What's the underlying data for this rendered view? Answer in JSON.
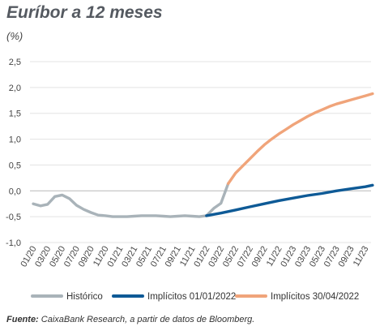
{
  "chart_data": {
    "type": "line",
    "title": "Euríbor a 12 meses",
    "unit_label": "(%)",
    "ylim": [
      -1.0,
      2.5
    ],
    "y_ticks": [
      "2,5",
      "2,0",
      "1,5",
      "1,0",
      "0,5",
      "0,0",
      "-0,5",
      "-1,0"
    ],
    "y_tick_values": [
      2.5,
      2.0,
      1.5,
      1.0,
      0.5,
      0.0,
      -0.5,
      -1.0
    ],
    "x_ticks": [
      "01/20",
      "03/20",
      "05/20",
      "07/20",
      "09/20",
      "11/20",
      "01/21",
      "03/21",
      "05/21",
      "07/21",
      "09/21",
      "11/21",
      "01/22",
      "03/22",
      "05/22",
      "07/22",
      "09/22",
      "11/22",
      "01/23",
      "03/23",
      "05/23",
      "07/23",
      "09/23",
      "11/23"
    ],
    "grid": true,
    "legend_position": "bottom",
    "series": [
      {
        "name": "Histórico",
        "color": "#a9b3b9",
        "x": [
          "01/20",
          "02/20",
          "03/20",
          "04/20",
          "05/20",
          "06/20",
          "07/20",
          "08/20",
          "09/20",
          "10/20",
          "11/20",
          "12/20",
          "01/21",
          "02/21",
          "03/21",
          "04/21",
          "05/21",
          "06/21",
          "07/21",
          "08/21",
          "09/21",
          "10/21",
          "11/21",
          "12/21",
          "01/22",
          "02/22",
          "03/22",
          "04/22"
        ],
        "values": [
          -0.25,
          -0.29,
          -0.26,
          -0.11,
          -0.08,
          -0.15,
          -0.28,
          -0.36,
          -0.42,
          -0.47,
          -0.48,
          -0.5,
          -0.5,
          -0.5,
          -0.49,
          -0.48,
          -0.48,
          -0.48,
          -0.49,
          -0.5,
          -0.49,
          -0.48,
          -0.49,
          -0.5,
          -0.48,
          -0.34,
          -0.24,
          0.14
        ]
      },
      {
        "name": "Implícitos 01/01/2022",
        "color": "#0e5a96",
        "x": [
          "01/22",
          "03/22",
          "05/22",
          "07/22",
          "09/22",
          "11/22",
          "01/23",
          "03/23",
          "05/23",
          "07/23",
          "09/23",
          "11/23",
          "12/23"
        ],
        "values": [
          -0.48,
          -0.43,
          -0.37,
          -0.31,
          -0.25,
          -0.19,
          -0.14,
          -0.09,
          -0.05,
          0.0,
          0.04,
          0.08,
          0.11
        ]
      },
      {
        "name": "Implícitos 30/04/2022",
        "color": "#f0a47a",
        "x": [
          "04/22",
          "05/22",
          "06/22",
          "07/22",
          "08/22",
          "09/22",
          "10/22",
          "11/22",
          "12/22",
          "01/23",
          "02/23",
          "03/23",
          "04/23",
          "05/23",
          "06/23",
          "07/23",
          "08/23",
          "09/23",
          "10/23",
          "11/23",
          "12/23"
        ],
        "values": [
          0.14,
          0.34,
          0.48,
          0.62,
          0.76,
          0.89,
          1.0,
          1.1,
          1.19,
          1.28,
          1.36,
          1.44,
          1.51,
          1.57,
          1.63,
          1.68,
          1.72,
          1.76,
          1.8,
          1.84,
          1.88
        ]
      }
    ]
  },
  "source": {
    "label": "Fuente:",
    "text": " CaixaBank Research, a partir de datos de Bloomberg."
  }
}
